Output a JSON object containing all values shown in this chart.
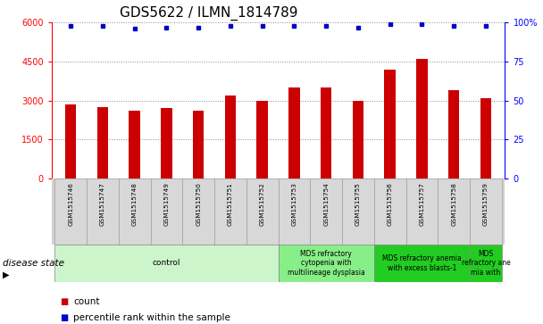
{
  "title": "GDS5622 / ILMN_1814789",
  "samples": [
    "GSM1515746",
    "GSM1515747",
    "GSM1515748",
    "GSM1515749",
    "GSM1515750",
    "GSM1515751",
    "GSM1515752",
    "GSM1515753",
    "GSM1515754",
    "GSM1515755",
    "GSM1515756",
    "GSM1515757",
    "GSM1515758",
    "GSM1515759"
  ],
  "counts": [
    2850,
    2750,
    2600,
    2700,
    2600,
    3200,
    3000,
    3500,
    3500,
    3000,
    4200,
    4600,
    3400,
    3100
  ],
  "percentile_ranks": [
    98,
    98,
    96,
    97,
    97,
    98,
    98,
    98,
    98,
    97,
    99,
    99,
    98,
    98
  ],
  "bar_color": "#cc0000",
  "dot_color": "#0000cc",
  "ylim_left": [
    0,
    6000
  ],
  "ylim_right": [
    0,
    100
  ],
  "yticks_left": [
    0,
    1500,
    3000,
    4500,
    6000
  ],
  "yticks_right": [
    0,
    25,
    50,
    75,
    100
  ],
  "disease_groups": [
    {
      "label": "control",
      "start": 0,
      "end": 7,
      "color": "#ccf5cc"
    },
    {
      "label": "MDS refractory\ncytopenia with\nmultilineage dysplasia",
      "start": 7,
      "end": 10,
      "color": "#88ee88"
    },
    {
      "label": "MDS refractory anemia\nwith excess blasts-1",
      "start": 10,
      "end": 13,
      "color": "#22cc22"
    },
    {
      "label": "MDS\nrefractory ane\nmia with",
      "start": 13,
      "end": 14,
      "color": "#22cc22"
    }
  ],
  "legend_count_color": "#cc0000",
  "legend_dot_color": "#0000cc",
  "title_fontsize": 11,
  "tick_label_fontsize": 7,
  "disease_state_label": "disease state",
  "legend_count_label": "count",
  "legend_percentile_label": "percentile rank within the sample",
  "bg_color": "#ffffff",
  "grid_color": "#888888",
  "bar_width": 0.35
}
